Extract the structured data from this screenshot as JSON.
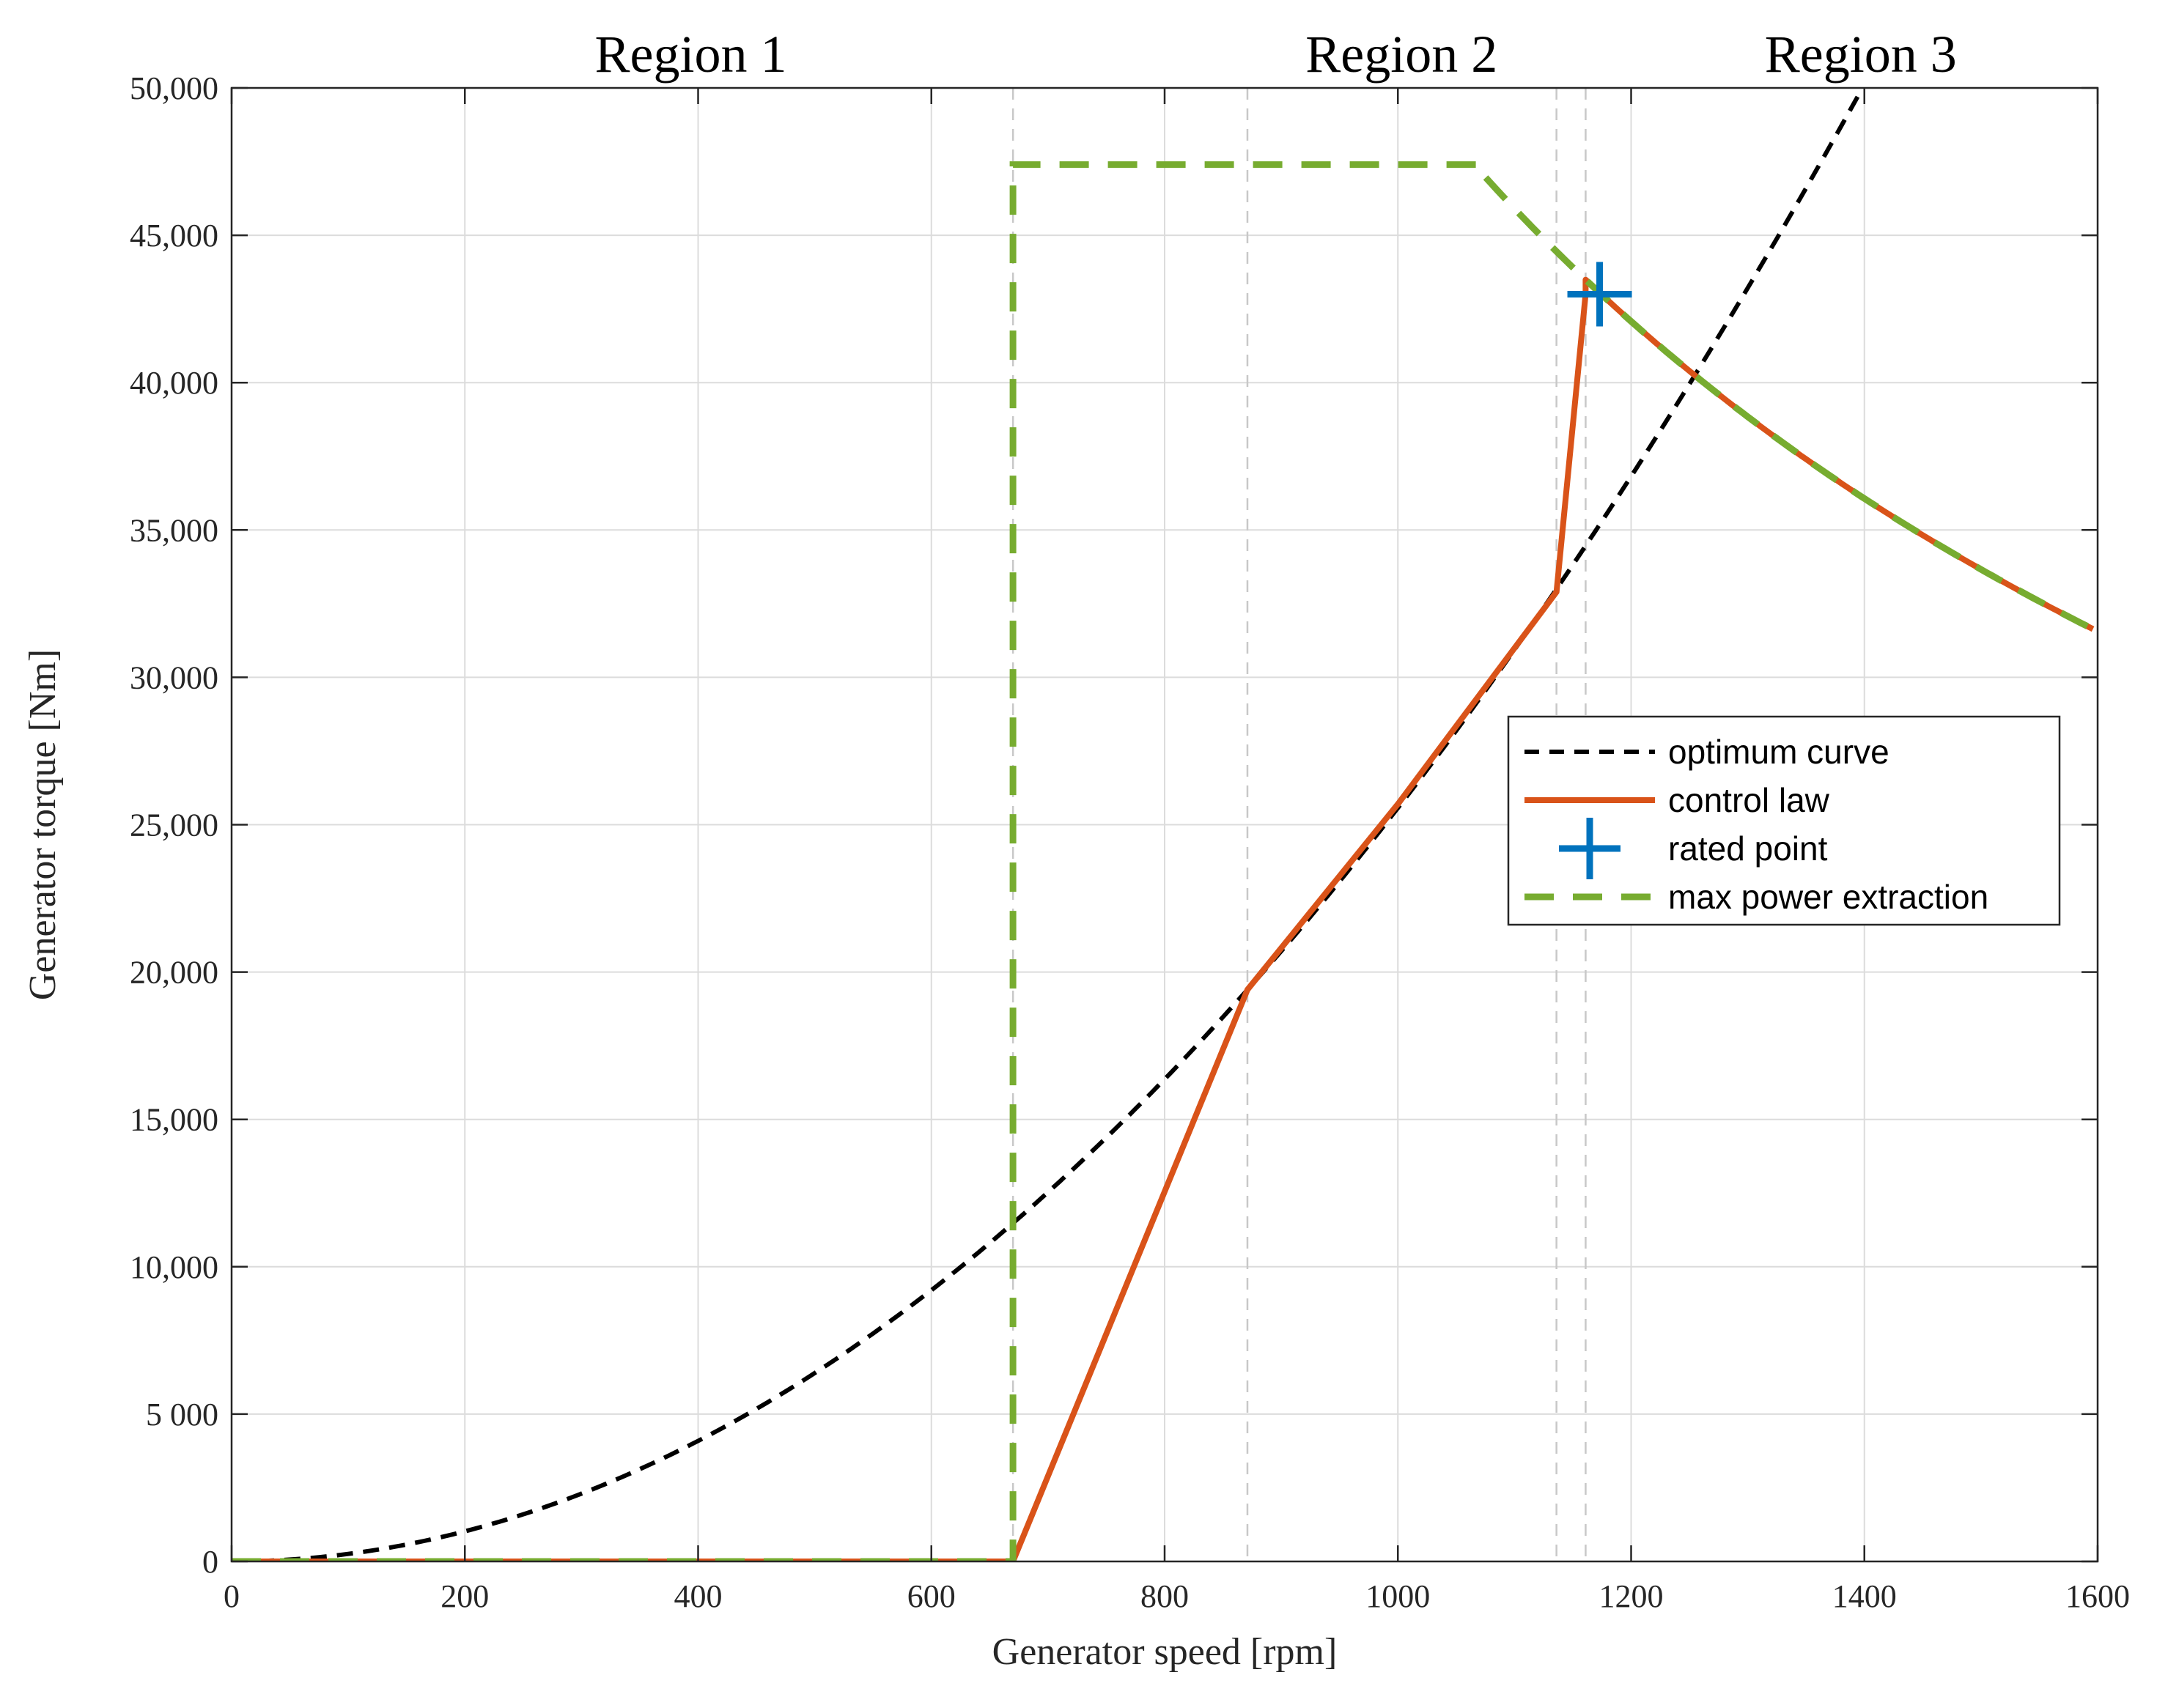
{
  "chart_data": {
    "type": "line",
    "title": "",
    "xlabel": "Generator speed [rpm]",
    "ylabel": "Generator torque [Nm]",
    "xlim": [
      0,
      1600
    ],
    "ylim": [
      0,
      50000
    ],
    "grid": true,
    "x_ticks": [
      0,
      200,
      400,
      600,
      800,
      1000,
      1200,
      1400,
      1600
    ],
    "x_tick_labels": [
      "0",
      "200",
      "400",
      "600",
      "800",
      "1000",
      "1200",
      "1400",
      "1600"
    ],
    "y_ticks": [
      0,
      5000,
      10000,
      15000,
      20000,
      25000,
      30000,
      35000,
      40000,
      45000,
      50000
    ],
    "y_tick_labels": [
      "0",
      "5 000",
      "10,000",
      "15,000",
      "20,000",
      "25,000",
      "30,000",
      "35,000",
      "40,000",
      "45,000",
      "50,000"
    ],
    "region_labels": [
      {
        "text": "Region 1",
        "x": 400
      },
      {
        "text": "Region 2",
        "x": 1000
      },
      {
        "text": "Region 3",
        "x": 1400
      }
    ],
    "region_boundaries": [
      670,
      871,
      1136,
      1161
    ],
    "legend_position": "center-right",
    "series": [
      {
        "name": "optimum curve",
        "style": "dashed",
        "color": "#000000",
        "model": "quadratic",
        "coefficient": 0.02557,
        "x_range": [
          0,
          1400
        ]
      },
      {
        "name": "control law",
        "style": "solid",
        "color": "#D95319",
        "x": [
          0,
          670,
          871,
          1000,
          1136,
          1161
        ],
        "y": [
          0,
          0,
          19400,
          25700,
          32900,
          43000
        ]
      },
      {
        "name": "rated point",
        "style": "marker-plus",
        "color": "#0072BD",
        "x": [
          1173
        ],
        "y": [
          43000
        ]
      },
      {
        "name": "max power extraction",
        "style": "dashed",
        "color": "#77AC30",
        "x": [
          0,
          670,
          670,
          1070
        ],
        "y": [
          0,
          0,
          47400,
          47400
        ],
        "tail_model": "constant power",
        "tail_power_product": 50495000,
        "tail_x_range": [
          1070,
          1600
        ]
      }
    ]
  }
}
